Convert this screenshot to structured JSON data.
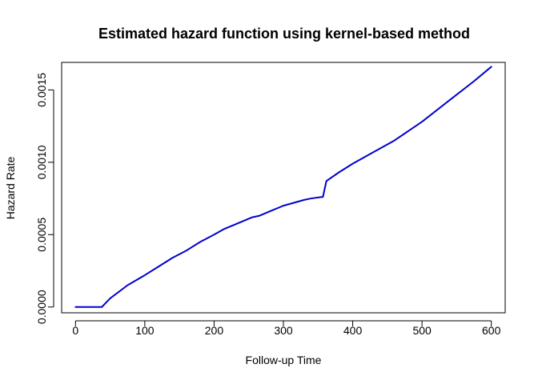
{
  "chart_data": {
    "type": "line",
    "title": "Estimated hazard function using kernel-based method",
    "xlabel": "Follow-up Time",
    "ylabel": "Hazard Rate",
    "xlim": [
      -20,
      620
    ],
    "ylim": [
      -4e-05,
      0.00169
    ],
    "xticks": [
      0,
      100,
      200,
      300,
      400,
      500,
      600
    ],
    "xtick_labels": [
      "0",
      "100",
      "200",
      "300",
      "400",
      "500",
      "600"
    ],
    "yticks": [
      0.0,
      0.0005,
      0.001,
      0.0015
    ],
    "ytick_labels": [
      "0.0000",
      "0.0005",
      "0.0010",
      "0.0015"
    ],
    "grid": false,
    "legend": "none",
    "series": [
      {
        "color": "#0000cd",
        "x": [
          0,
          20,
          38,
          50,
          75,
          100,
          120,
          140,
          160,
          180,
          200,
          215,
          230,
          255,
          265,
          280,
          300,
          315,
          330,
          340,
          355,
          357,
          362,
          380,
          400,
          430,
          460,
          500,
          540,
          575,
          600
        ],
        "y": [
          0.0,
          0.0,
          0.0,
          6e-05,
          0.00015,
          0.00022,
          0.00028,
          0.00034,
          0.00039,
          0.00045,
          0.0005,
          0.00054,
          0.00057,
          0.00062,
          0.00063,
          0.00066,
          0.0007,
          0.00072,
          0.00074,
          0.00075,
          0.00076,
          0.00076,
          0.00087,
          0.00093,
          0.00099,
          0.00107,
          0.00115,
          0.00128,
          0.00143,
          0.00156,
          0.00166
        ]
      }
    ]
  }
}
